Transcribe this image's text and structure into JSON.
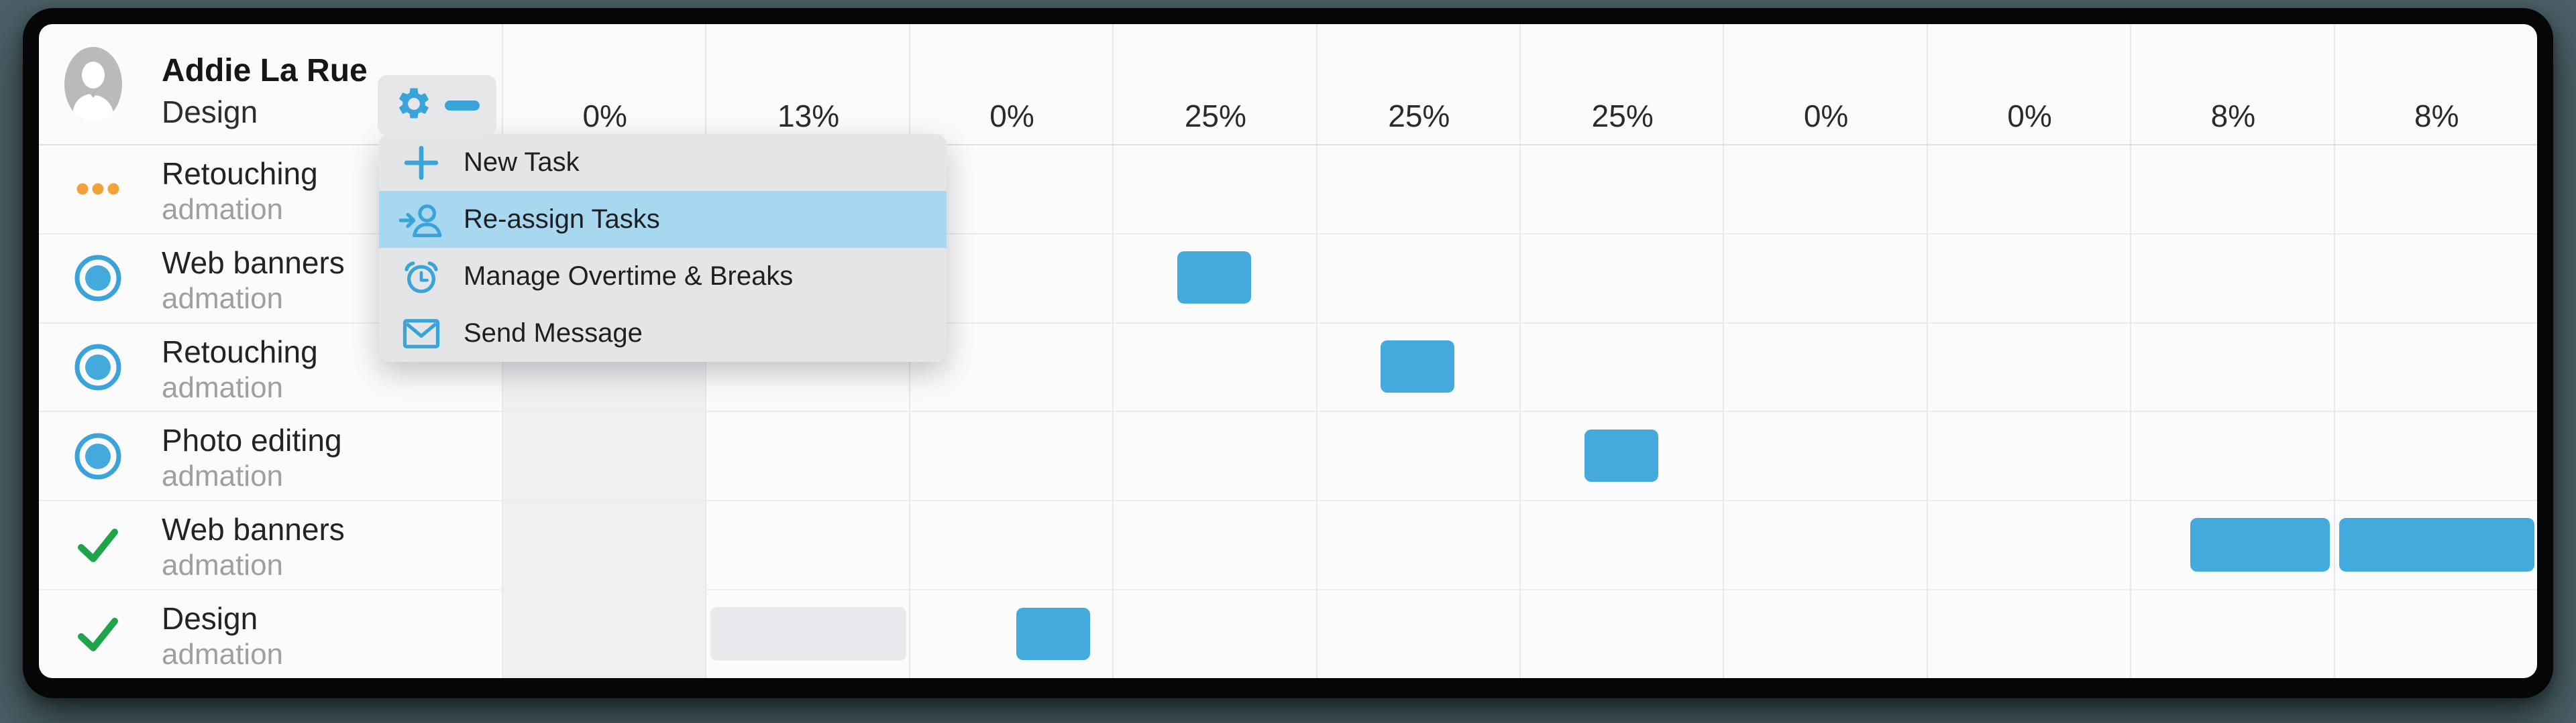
{
  "user": {
    "name": "Addie La Rue",
    "role": "Design"
  },
  "header": {
    "day_columns": [
      "0%",
      "13%",
      "0%",
      "25%",
      "25%",
      "25%",
      "0%",
      "0%",
      "8%",
      "8%"
    ],
    "selected_column_index": 0
  },
  "toolbar": {
    "buttons": [
      "gear-icon",
      "minus-icon"
    ]
  },
  "menu": {
    "items": [
      {
        "icon": "plus-icon",
        "label": "New Task",
        "highlighted": false
      },
      {
        "icon": "reassign-icon",
        "label": "Re-assign Tasks",
        "highlighted": true
      },
      {
        "icon": "alarm-icon",
        "label": "Manage Overtime & Breaks",
        "highlighted": false
      },
      {
        "icon": "mail-icon",
        "label": "Send Message",
        "highlighted": false
      }
    ]
  },
  "rows": [
    {
      "task": "Retouching",
      "project": "admation",
      "status_icon": "ellipsis-icon",
      "bars": []
    },
    {
      "task": "Web banners",
      "project": "admation",
      "status_icon": "radio-icon",
      "bars": [
        {
          "column": 4,
          "kind": "small",
          "color": "blue"
        }
      ]
    },
    {
      "task": "Retouching",
      "project": "admation",
      "status_icon": "radio-icon",
      "bars": [
        {
          "column": 5,
          "kind": "small",
          "color": "blue"
        }
      ]
    },
    {
      "task": "Photo editing",
      "project": "admation",
      "status_icon": "radio-icon",
      "bars": [
        {
          "column": 6,
          "kind": "small",
          "color": "blue"
        }
      ]
    },
    {
      "task": "Web banners",
      "project": "admation",
      "status_icon": "check-icon",
      "bars": [
        {
          "column": 9,
          "kind": "wide-right",
          "color": "blue"
        },
        {
          "column": 10,
          "kind": "full",
          "color": "blue"
        }
      ]
    },
    {
      "task": "Design",
      "project": "admation",
      "status_icon": "check-icon",
      "bars": [
        {
          "column": 2,
          "kind": "full",
          "color": "gray"
        },
        {
          "column": 3,
          "kind": "small-offset",
          "color": "blue"
        }
      ]
    }
  ],
  "colors": {
    "background": "#4a6167",
    "frame": "#060607",
    "panel": "#fbfbfc",
    "bar_blue": "#44a9dd",
    "bar_gray": "#e8eaed",
    "icon_blue": "#3aa3da",
    "status_orange": "#f2a23b",
    "status_green": "#1ea54a",
    "menu_background": "#e4e5e7",
    "menu_highlight": "#a8d7f0",
    "selected_column": "#eef0f2",
    "avatar_gray": "#b8babc"
  }
}
